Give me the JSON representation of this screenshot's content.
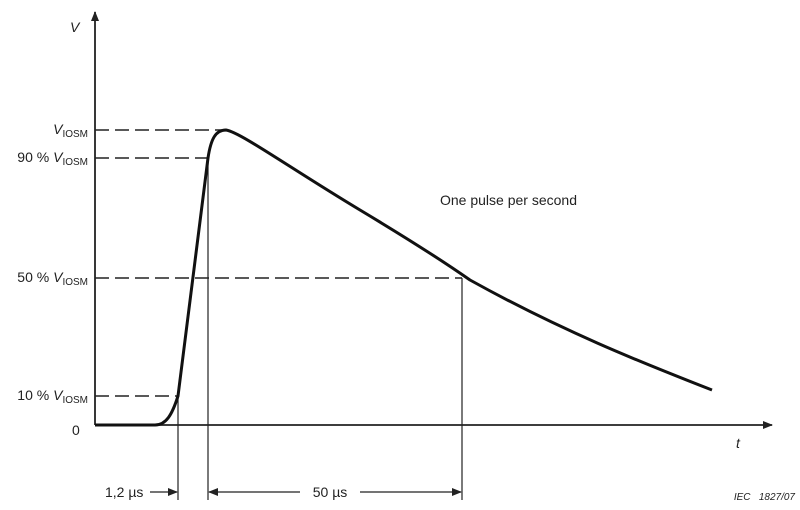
{
  "axes": {
    "y_label": "V",
    "x_label": "t",
    "origin": "0"
  },
  "levels": [
    {
      "symbol": "V",
      "sub": "IOSM"
    },
    {
      "prefix": "90 %",
      "symbol": "V",
      "sub": "IOSM"
    },
    {
      "prefix": "50 %",
      "symbol": "V",
      "sub": "IOSM"
    },
    {
      "prefix": "10 %",
      "symbol": "V",
      "sub": "IOSM"
    }
  ],
  "annotation": "One pulse per second",
  "front_time": "1,2 µs",
  "half_time": "50 µs",
  "reference": "IEC   1827/07"
}
